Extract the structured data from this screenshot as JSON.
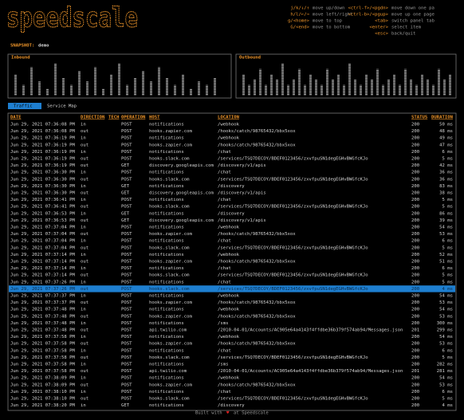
{
  "header": {
    "logo": "speedscale",
    "help_left": [
      {
        "key": "j/k/↓/↑",
        "desc": "move up/down"
      },
      {
        "key": "h/l/←/→",
        "desc": "move left/right"
      },
      {
        "key": "g/<home>",
        "desc": "move to top"
      },
      {
        "key": "G/<end>",
        "desc": "move to bottom"
      }
    ],
    "help_right": [
      {
        "key": "<ctrl-f>/<pgdn>",
        "desc": "move down one pa"
      },
      {
        "key": "<ctrl-b>/<pgup>",
        "desc": "move up one page"
      },
      {
        "key": "<tab>",
        "desc": "switch panel tab"
      },
      {
        "key": "<enter>",
        "desc": "select item"
      },
      {
        "key": "<esc>",
        "desc": "back/quit"
      }
    ]
  },
  "snapshot": {
    "label": "SNAPSHOT:",
    "name": "demo"
  },
  "panels": [
    {
      "title": "Inbound",
      "bars": [
        6,
        3,
        8,
        4,
        2,
        9,
        5,
        3,
        7,
        4,
        8,
        2,
        6,
        9,
        3,
        5,
        7,
        4,
        8,
        5,
        3,
        6,
        2,
        4,
        3,
        5
      ]
    },
    {
      "title": "Outbound",
      "bars": [
        4,
        2,
        3,
        5,
        2,
        4,
        3,
        6,
        2,
        3,
        5,
        2,
        4,
        3,
        2,
        5,
        3,
        4,
        2,
        6,
        3,
        2,
        4,
        3,
        5,
        2,
        3,
        4,
        2,
        5,
        3,
        2,
        4,
        3,
        2,
        5,
        3,
        4
      ]
    }
  ],
  "tabs": [
    "Traffic",
    "Service Map"
  ],
  "table": {
    "columns": [
      "DATE",
      "DIRECTION",
      "TECH",
      "OPERATION",
      "HOST",
      "LOCATION",
      "STATUS",
      "DURATION"
    ],
    "selected": 24,
    "rows": [
      {
        "date": "Jun 29, 2021 07:36:08 PM",
        "direction": "in",
        "operation": "POST",
        "host": "notifications",
        "location": "/webhook",
        "status": 200,
        "duration": "50 ms"
      },
      {
        "date": "Jun 29, 2021 07:36:08 PM",
        "direction": "out",
        "operation": "POST",
        "host": "hooks.zapier.com",
        "location": "/hooks/catch/98765432/bbx5xox",
        "status": 200,
        "duration": "48 ms"
      },
      {
        "date": "Jun 29, 2021 07:36:19 PM",
        "direction": "in",
        "operation": "POST",
        "host": "notifications",
        "location": "/webhook",
        "status": 200,
        "duration": "49 ms"
      },
      {
        "date": "Jun 29, 2021 07:36:19 PM",
        "direction": "out",
        "operation": "POST",
        "host": "hooks.zapier.com",
        "location": "/hooks/catch/98765432/bbx5xox",
        "status": 200,
        "duration": "47 ms"
      },
      {
        "date": "Jun 29, 2021 07:36:19 PM",
        "direction": "in",
        "operation": "POST",
        "host": "notifications",
        "location": "/chat",
        "status": 200,
        "duration": "6 ms"
      },
      {
        "date": "Jun 29, 2021 07:36:19 PM",
        "direction": "out",
        "operation": "POST",
        "host": "hooks.slack.com",
        "location": "/services/TSQ7DECOY/BDEF0123456/zxvfpuSN1degEGHvBWGfcKJo",
        "status": 200,
        "duration": "5 ms"
      },
      {
        "date": "Jun 29, 2021 07:36:19 PM",
        "direction": "out",
        "operation": "GET",
        "host": "discovery.googleapis.com",
        "location": "/discovery/v1/apis",
        "status": 200,
        "duration": "42 ms"
      },
      {
        "date": "Jun 29, 2021 07:36:30 PM",
        "direction": "in",
        "operation": "POST",
        "host": "notifications",
        "location": "/chat",
        "status": 200,
        "duration": "36 ms"
      },
      {
        "date": "Jun 29, 2021 07:36:30 PM",
        "direction": "out",
        "operation": "POST",
        "host": "hooks.slack.com",
        "location": "/services/TSQ7DECOY/BDEF0123456/zxvfpuSN1degEGHvBWGfcKJo",
        "status": 200,
        "duration": "36 ms"
      },
      {
        "date": "Jun 29, 2021 07:36:30 PM",
        "direction": "in",
        "operation": "GET",
        "host": "notifications",
        "location": "/discovery",
        "status": 200,
        "duration": "83 ms"
      },
      {
        "date": "Jun 29, 2021 07:36:30 PM",
        "direction": "out",
        "operation": "GET",
        "host": "discovery.googleapis.com",
        "location": "/discovery/v1/apis",
        "status": 200,
        "duration": "38 ms"
      },
      {
        "date": "Jun 29, 2021 07:36:41 PM",
        "direction": "in",
        "operation": "POST",
        "host": "notifications",
        "location": "/chat",
        "status": 200,
        "duration": "5 ms"
      },
      {
        "date": "Jun 29, 2021 07:36:41 PM",
        "direction": "out",
        "operation": "POST",
        "host": "hooks.slack.com",
        "location": "/services/TSQ7DECOY/BDEF0123456/zxvfpuSN1degEGHvBWGfcKJo",
        "status": 200,
        "duration": "5 ms"
      },
      {
        "date": "Jun 29, 2021 07:36:53 PM",
        "direction": "in",
        "operation": "GET",
        "host": "notifications",
        "location": "/discovery",
        "status": 200,
        "duration": "86 ms"
      },
      {
        "date": "Jun 29, 2021 07:36:53 PM",
        "direction": "out",
        "operation": "GET",
        "host": "discovery.googleapis.com",
        "location": "/discovery/v1/apis",
        "status": 200,
        "duration": "39 ms"
      },
      {
        "date": "Jun 29, 2021 07:37:04 PM",
        "direction": "in",
        "operation": "POST",
        "host": "notifications",
        "location": "/webhook",
        "status": 200,
        "duration": "54 ms"
      },
      {
        "date": "Jun 29, 2021 07:37:04 PM",
        "direction": "out",
        "operation": "POST",
        "host": "hooks.zapier.com",
        "location": "/hooks/catch/98765432/bbx5xox",
        "status": 200,
        "duration": "53 ms"
      },
      {
        "date": "Jun 29, 2021 07:37:04 PM",
        "direction": "in",
        "operation": "POST",
        "host": "notifications",
        "location": "/chat",
        "status": 200,
        "duration": "6 ms"
      },
      {
        "date": "Jun 29, 2021 07:37:04 PM",
        "direction": "out",
        "operation": "POST",
        "host": "hooks.slack.com",
        "location": "/services/TSQ7DECOY/BDEF0123456/zxvfpuSN1degEGHvBWGfcKJo",
        "status": 200,
        "duration": "5 ms"
      },
      {
        "date": "Jun 29, 2021 07:37:14 PM",
        "direction": "in",
        "operation": "POST",
        "host": "notifications",
        "location": "/webhook",
        "status": 200,
        "duration": "52 ms"
      },
      {
        "date": "Jun 29, 2021 07:37:14 PM",
        "direction": "out",
        "operation": "POST",
        "host": "hooks.zapier.com",
        "location": "/hooks/catch/98765432/bbx5xox",
        "status": 200,
        "duration": "51 ms"
      },
      {
        "date": "Jun 29, 2021 07:37:14 PM",
        "direction": "in",
        "operation": "POST",
        "host": "notifications",
        "location": "/chat",
        "status": 200,
        "duration": "6 ms"
      },
      {
        "date": "Jun 29, 2021 07:37:14 PM",
        "direction": "out",
        "operation": "POST",
        "host": "hooks.slack.com",
        "location": "/services/TSQ7DECOY/BDEF0123456/zxvfpuSN1degEGHvBWGfcKJo",
        "status": 200,
        "duration": "5 ms"
      },
      {
        "date": "Jun 29, 2021 07:37:26 PM",
        "direction": "in",
        "operation": "POST",
        "host": "notifications",
        "location": "/chat",
        "status": 200,
        "duration": "5 ms"
      },
      {
        "date": "Jun 29, 2021 07:37:26 PM",
        "direction": "out",
        "operation": "POST",
        "host": "hooks.slack.com",
        "location": "/services/TSQ7DECOY/BDEF0123456/zxvfpuSN1degEGHvBWGfcKJo",
        "status": 200,
        "duration": "4 ms"
      },
      {
        "date": "Jun 29, 2021 07:37:37 PM",
        "direction": "in",
        "operation": "POST",
        "host": "notifications",
        "location": "/webhook",
        "status": 200,
        "duration": "54 ms"
      },
      {
        "date": "Jun 29, 2021 07:37:37 PM",
        "direction": "out",
        "operation": "POST",
        "host": "hooks.zapier.com",
        "location": "/hooks/catch/98765432/bbx5xox",
        "status": 200,
        "duration": "53 ms"
      },
      {
        "date": "Jun 29, 2021 07:37:48 PM",
        "direction": "in",
        "operation": "POST",
        "host": "notifications",
        "location": "/webhook",
        "status": 200,
        "duration": "54 ms"
      },
      {
        "date": "Jun 29, 2021 07:37:48 PM",
        "direction": "out",
        "operation": "POST",
        "host": "hooks.zapier.com",
        "location": "/hooks/catch/98765432/bbx5xox",
        "status": 200,
        "duration": "53 ms"
      },
      {
        "date": "Jun 29, 2021 07:37:48 PM",
        "direction": "in",
        "operation": "POST",
        "host": "notifications",
        "location": "/sms",
        "status": 200,
        "duration": "300 ms"
      },
      {
        "date": "Jun 29, 2021 07:37:48 PM",
        "direction": "out",
        "operation": "POST",
        "host": "api.twilio.com",
        "location": "/2010-04-01/Accounts/AC905e64a4143f4ffdbe36b379f574ab94/Messages.json",
        "status": 201,
        "duration": "299 ms"
      },
      {
        "date": "Jun 29, 2021 07:37:58 PM",
        "direction": "in",
        "operation": "POST",
        "host": "notifications",
        "location": "/webhook",
        "status": 200,
        "duration": "54 ms"
      },
      {
        "date": "Jun 29, 2021 07:37:58 PM",
        "direction": "out",
        "operation": "POST",
        "host": "hooks.zapier.com",
        "location": "/hooks/catch/98765432/bbx5xox",
        "status": 200,
        "duration": "53 ms"
      },
      {
        "date": "Jun 29, 2021 07:37:58 PM",
        "direction": "in",
        "operation": "POST",
        "host": "notifications",
        "location": "/chat",
        "status": 200,
        "duration": "6 ms"
      },
      {
        "date": "Jun 29, 2021 07:37:58 PM",
        "direction": "out",
        "operation": "POST",
        "host": "hooks.slack.com",
        "location": "/services/TSQ7DECOY/BDEF0123456/zxvfpuSN1degEGHvBWGfcKJo",
        "status": 200,
        "duration": "5 ms"
      },
      {
        "date": "Jun 29, 2021 07:37:58 PM",
        "direction": "in",
        "operation": "POST",
        "host": "notifications",
        "location": "/sms",
        "status": 200,
        "duration": "282 ms"
      },
      {
        "date": "Jun 29, 2021 07:37:58 PM",
        "direction": "out",
        "operation": "POST",
        "host": "api.twilio.com",
        "location": "/2010-04-01/Accounts/AC905e64a4143f4ffdbe36b379f574ab94/Messages.json",
        "status": 201,
        "duration": "281 ms"
      },
      {
        "date": "Jun 29, 2021 07:38:09 PM",
        "direction": "in",
        "operation": "POST",
        "host": "notifications",
        "location": "/webhook",
        "status": 200,
        "duration": "54 ms"
      },
      {
        "date": "Jun 29, 2021 07:38:09 PM",
        "direction": "out",
        "operation": "POST",
        "host": "hooks.zapier.com",
        "location": "/hooks/catch/98765432/bbx5xox",
        "status": 200,
        "duration": "53 ms"
      },
      {
        "date": "Jun 29, 2021 07:38:10 PM",
        "direction": "in",
        "operation": "POST",
        "host": "notifications",
        "location": "/chat",
        "status": 200,
        "duration": "6 ms"
      },
      {
        "date": "Jun 29, 2021 07:38:10 PM",
        "direction": "out",
        "operation": "POST",
        "host": "hooks.slack.com",
        "location": "/services/TSQ7DECOY/BDEF0123456/zxvfpuSN1degEGHvBWGfcKJo",
        "status": 200,
        "duration": "5 ms"
      },
      {
        "date": "Jun 29, 2021 07:38:20 PM",
        "direction": "in",
        "operation": "GET",
        "host": "notifications",
        "location": "/discovery",
        "status": 200,
        "duration": "4 ms"
      }
    ]
  },
  "footer": {
    "before": "Built with",
    "heart": "♥",
    "after": "at Speedscale"
  }
}
